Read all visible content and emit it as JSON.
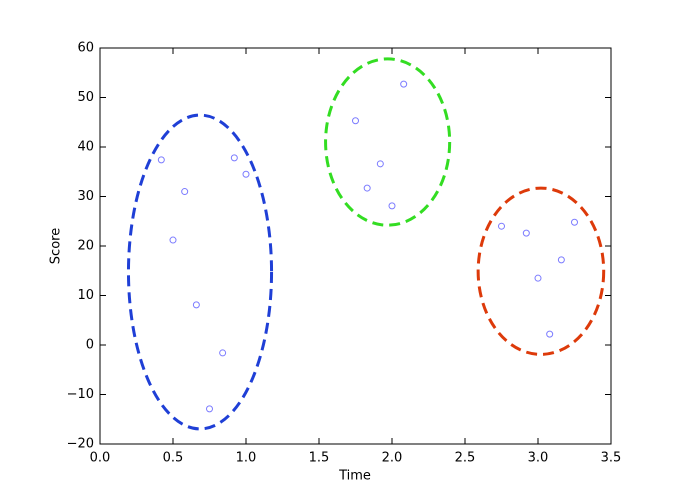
{
  "chart_data": {
    "type": "scatter",
    "xlabel": "Time",
    "ylabel": "Score",
    "x": [
      0.42,
      0.58,
      0.5,
      0.66,
      0.84,
      0.75,
      0.92,
      1.0,
      1.75,
      2.08,
      1.92,
      1.83,
      2.0,
      2.75,
      2.92,
      3.25,
      3.16,
      3.0,
      3.08
    ],
    "values": [
      37.4,
      31,
      21.2,
      8.1,
      -1.6,
      -12.9,
      37.8,
      34.5,
      45.3,
      52.7,
      36.6,
      31.7,
      28.1,
      24,
      22.6,
      24.8,
      17.2,
      13.5,
      2.2
    ],
    "color": "#7b7bff",
    "ellipses": [
      {
        "cx": 0.685,
        "cy": 14.75,
        "rx": 0.49,
        "ry": 31.7,
        "color": "#1f3fd6"
      },
      {
        "cx": 1.97,
        "cy": 41,
        "rx": 0.425,
        "ry": 16.8,
        "color": "#33dd22"
      },
      {
        "cx": 3.02,
        "cy": 14.9,
        "rx": 0.43,
        "ry": 16.8,
        "color": "#dd3a0a"
      }
    ],
    "xlim": [
      0,
      3.5
    ],
    "ylim": [
      -20,
      60
    ],
    "xticks": [
      {
        "value": 0,
        "label": "0.0"
      },
      0.5,
      {
        "value": 1,
        "label": "1.0"
      },
      1.5,
      {
        "value": 2,
        "label": "2.0"
      },
      2.5,
      {
        "value": 3,
        "label": "3.0"
      },
      3.5
    ],
    "yticks": [
      {
        "value": -20,
        "label": "−20"
      },
      {
        "value": -10,
        "label": "−10"
      },
      0,
      10,
      20,
      30,
      40,
      50,
      60
    ]
  }
}
